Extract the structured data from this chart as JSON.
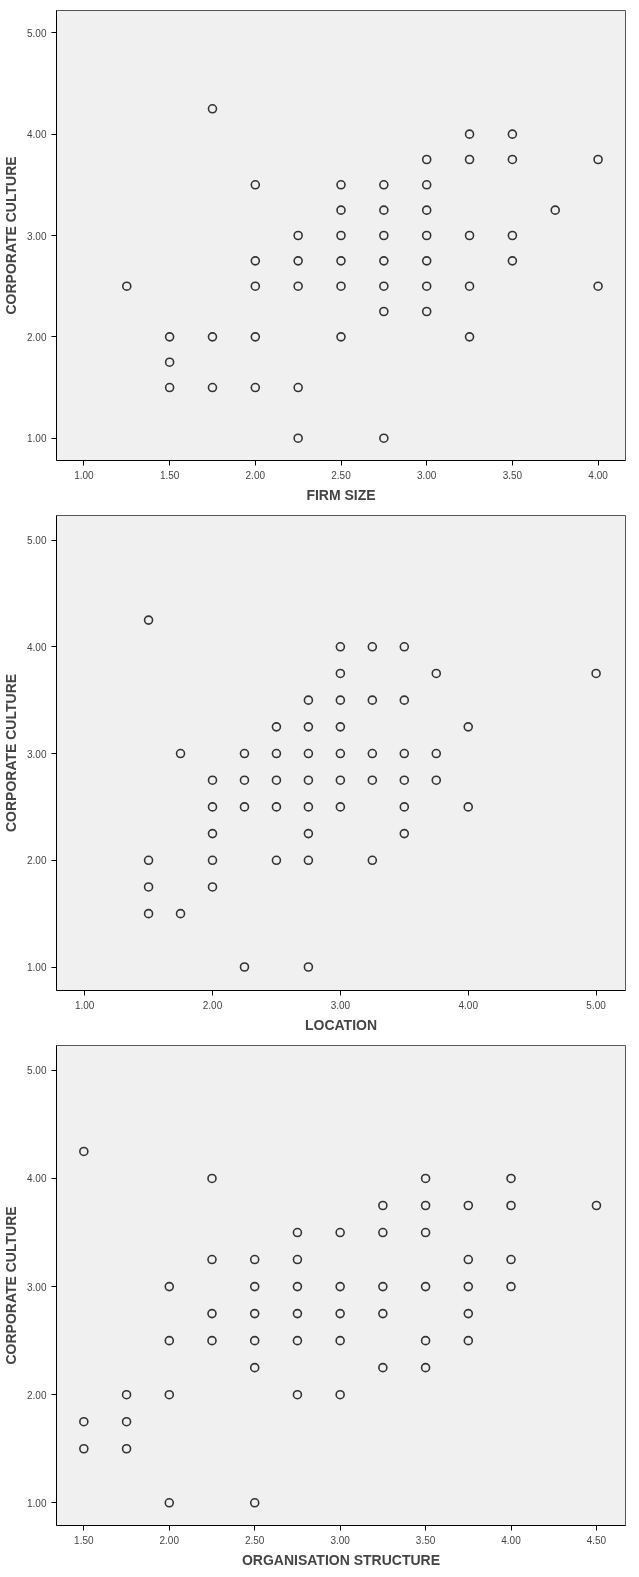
{
  "chart_data": [
    {
      "type": "scatter",
      "xlabel": "FIRM SIZE",
      "ylabel": "CORPORATE CULTURE",
      "marker": "circle",
      "grid": false,
      "xlim": [
        0.84,
        4.16
      ],
      "ylim": [
        0.78,
        5.22
      ],
      "xticks": [
        {
          "value": 1,
          "label": "1.00"
        },
        {
          "value": 1.5,
          "label": "1.50"
        },
        {
          "value": 2,
          "label": "2.00"
        },
        {
          "value": 2.5,
          "label": "2.50"
        },
        {
          "value": 3,
          "label": "3.00"
        },
        {
          "value": 3.5,
          "label": "3.50"
        },
        {
          "value": 4,
          "label": "4.00"
        }
      ],
      "yticks": [
        {
          "value": 1,
          "label": "1.00"
        },
        {
          "value": 2,
          "label": "2.00"
        },
        {
          "value": 3,
          "label": "3.00"
        },
        {
          "value": 4,
          "label": "4.00"
        },
        {
          "value": 5,
          "label": "5.00"
        }
      ],
      "series": [
        {
          "color": "#333333",
          "x": [
            1.25,
            1.5,
            1.5,
            1.5,
            1.75,
            1.75,
            1.75,
            2,
            2,
            2,
            2,
            2,
            2.25,
            2.25,
            2.25,
            2.25,
            2.25,
            2.5,
            2.5,
            2.5,
            2.5,
            2.5,
            2.5,
            2.75,
            2.75,
            2.75,
            2.75,
            2.75,
            2.75,
            2.75,
            3,
            3,
            3,
            3,
            3,
            3,
            3,
            3.25,
            3.25,
            3.25,
            3.25,
            3.25,
            3.5,
            3.5,
            3.5,
            3.5,
            3.75,
            4,
            4
          ],
          "values": [
            2.5,
            2,
            1.75,
            1.5,
            4.25,
            2,
            1.5,
            3.5,
            2.75,
            2.5,
            2,
            1.5,
            3,
            2.75,
            2.5,
            1.5,
            1,
            3.5,
            3.25,
            3,
            2.75,
            2.5,
            2,
            3.5,
            3.25,
            3,
            2.75,
            2.5,
            2.25,
            1,
            3.75,
            3.5,
            3.25,
            3,
            2.75,
            2.5,
            2.25,
            4,
            3.75,
            3,
            2.5,
            2,
            4,
            3.75,
            3,
            2.75,
            3.25,
            3.75,
            2.5
          ]
        }
      ]
    },
    {
      "type": "scatter",
      "xlabel": "LOCATION",
      "ylabel": "CORPORATE CULTURE",
      "marker": "circle",
      "grid": false,
      "xlim": [
        0.78,
        5.23
      ],
      "ylim": [
        0.78,
        5.23
      ],
      "xticks": [
        {
          "value": 1,
          "label": "1.00"
        },
        {
          "value": 2,
          "label": "2.00"
        },
        {
          "value": 3,
          "label": "3.00"
        },
        {
          "value": 4,
          "label": "4.00"
        },
        {
          "value": 5,
          "label": "5.00"
        }
      ],
      "yticks": [
        {
          "value": 1,
          "label": "1.00"
        },
        {
          "value": 2,
          "label": "2.00"
        },
        {
          "value": 3,
          "label": "3.00"
        },
        {
          "value": 4,
          "label": "4.00"
        },
        {
          "value": 5,
          "label": "5.00"
        }
      ],
      "series": [
        {
          "color": "#333333",
          "x": [
            1.5,
            1.5,
            1.5,
            1.5,
            1.75,
            1.75,
            2,
            2,
            2,
            2,
            2,
            2.25,
            2.25,
            2.25,
            2.25,
            2.5,
            2.5,
            2.5,
            2.5,
            2.5,
            2.75,
            2.75,
            2.75,
            2.75,
            2.75,
            2.75,
            2.75,
            2.75,
            3,
            3,
            3,
            3,
            3,
            3,
            3,
            3.25,
            3.25,
            3.25,
            3.25,
            3.25,
            3.5,
            3.5,
            3.5,
            3.5,
            3.5,
            3.5,
            3.75,
            3.75,
            3.75,
            4,
            4,
            5
          ],
          "values": [
            4.25,
            2,
            1.75,
            1.5,
            3,
            1.5,
            2.75,
            2.5,
            2.25,
            2,
            1.75,
            3,
            2.75,
            2.5,
            1,
            3.25,
            3,
            2.75,
            2.5,
            2,
            3.5,
            3.25,
            3,
            2.75,
            2.5,
            2.25,
            2,
            1,
            4,
            3.75,
            3.5,
            3.25,
            3,
            2.75,
            2.5,
            4,
            3.5,
            3,
            2.75,
            2,
            4,
            3.5,
            3,
            2.75,
            2.5,
            2.25,
            3.75,
            3,
            2.75,
            3.25,
            2.5,
            3.75
          ]
        }
      ]
    },
    {
      "type": "scatter",
      "xlabel": "ORGANISATION STRUCTURE",
      "ylabel": "CORPORATE CULTURE",
      "marker": "circle",
      "grid": false,
      "xlim": [
        1.34,
        4.67
      ],
      "ylim": [
        0.79,
        5.23
      ],
      "xticks": [
        {
          "value": 1.5,
          "label": "1.50"
        },
        {
          "value": 2,
          "label": "2.00"
        },
        {
          "value": 2.5,
          "label": "2.50"
        },
        {
          "value": 3,
          "label": "3.00"
        },
        {
          "value": 3.5,
          "label": "3.50"
        },
        {
          "value": 4,
          "label": "4.00"
        },
        {
          "value": 4.5,
          "label": "4.50"
        }
      ],
      "yticks": [
        {
          "value": 1,
          "label": "1.00"
        },
        {
          "value": 2,
          "label": "2.00"
        },
        {
          "value": 3,
          "label": "3.00"
        },
        {
          "value": 4,
          "label": "4.00"
        },
        {
          "value": 5,
          "label": "5.00"
        }
      ],
      "series": [
        {
          "color": "#333333",
          "x": [
            1.5,
            1.5,
            1.5,
            1.75,
            1.75,
            1.75,
            2,
            2,
            2,
            2,
            2.25,
            2.25,
            2.25,
            2.25,
            2.5,
            2.5,
            2.5,
            2.5,
            2.5,
            2.5,
            2.75,
            2.75,
            2.75,
            2.75,
            2.75,
            2.75,
            3,
            3,
            3,
            3,
            3,
            3.25,
            3.25,
            3.25,
            3.25,
            3.25,
            3.5,
            3.5,
            3.5,
            3.5,
            3.5,
            3.5,
            3.75,
            3.75,
            3.75,
            3.75,
            3.75,
            4,
            4,
            4,
            4,
            4.5
          ],
          "values": [
            4.25,
            1.75,
            1.5,
            2,
            1.75,
            1.5,
            3,
            2.5,
            2,
            1,
            4,
            3.25,
            2.75,
            2.5,
            3.25,
            3,
            2.75,
            2.5,
            2.25,
            1,
            3.5,
            3.25,
            3,
            2.75,
            2.5,
            2,
            3.5,
            3,
            2.75,
            2.5,
            2,
            3.75,
            3.5,
            3,
            2.75,
            2.25,
            4,
            3.75,
            3.5,
            3,
            2.5,
            2.25,
            3.75,
            3.25,
            3,
            2.75,
            2.5,
            4,
            3.75,
            3.25,
            3,
            3.75
          ]
        }
      ]
    }
  ]
}
